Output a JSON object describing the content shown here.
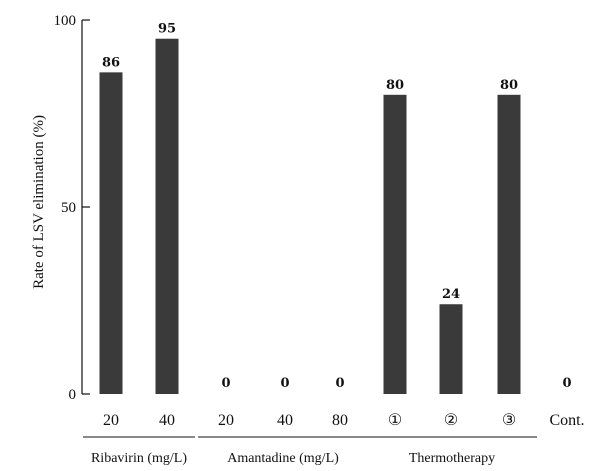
{
  "chart_data": {
    "type": "bar",
    "ylabel": "Rate of LSV elimination (%)",
    "ylim": [
      0,
      100
    ],
    "yticks": [
      0,
      50,
      100
    ],
    "grid": false,
    "bar_color": "#3a3a3a",
    "categories": [
      "20",
      "40",
      "20",
      "40",
      "80",
      "①",
      "②",
      "③",
      "Cont."
    ],
    "values": [
      86,
      95,
      0,
      0,
      0,
      80,
      24,
      80,
      0
    ],
    "groups": [
      {
        "label": "Ribavirin (mg/L)",
        "first": 0,
        "last": 1
      },
      {
        "label": "Amantadine (mg/L)",
        "first": 2,
        "last": 4
      },
      {
        "label": "Thermotherapy",
        "first": 5,
        "last": 7
      }
    ]
  }
}
